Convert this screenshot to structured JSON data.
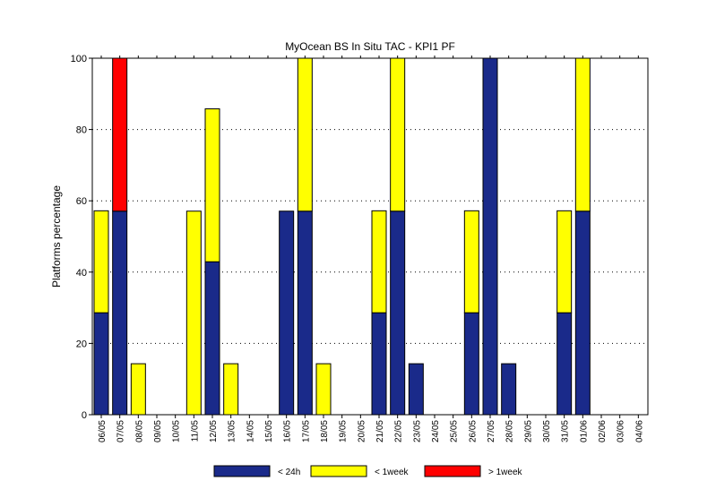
{
  "chart_data": {
    "type": "bar",
    "stacked": true,
    "title": "MyOcean  BS In Situ TAC - KPI1  PF",
    "xlabel": "",
    "ylabel": "Platforms percentage",
    "ylim": [
      0,
      100
    ],
    "yticks": [
      0,
      20,
      40,
      60,
      80,
      100
    ],
    "grid": "horizontal dotted",
    "legend_position": "bottom",
    "categories": [
      "06/05",
      "07/05",
      "08/05",
      "09/05",
      "10/05",
      "11/05",
      "12/05",
      "13/05",
      "14/05",
      "15/05",
      "16/05",
      "17/05",
      "18/05",
      "19/05",
      "20/05",
      "21/05",
      "22/05",
      "23/05",
      "24/05",
      "25/05",
      "26/05",
      "27/05",
      "28/05",
      "29/05",
      "30/05",
      "31/05",
      "01/06",
      "02/06",
      "03/06",
      "04/06"
    ],
    "series": [
      {
        "name": "< 24h",
        "color": "#1a2a8a",
        "values": [
          28.6,
          57.1,
          0,
          0,
          0,
          0,
          42.9,
          0,
          0,
          0,
          57.1,
          57.1,
          0,
          0,
          0,
          28.6,
          57.1,
          14.3,
          0,
          0,
          28.6,
          100,
          14.3,
          0,
          0,
          28.6,
          57.1,
          0,
          0,
          0
        ]
      },
      {
        "name": "< 1week",
        "color": "#ffff00",
        "values": [
          28.6,
          0,
          14.3,
          0,
          0,
          57.1,
          42.9,
          14.3,
          0,
          0,
          0,
          42.9,
          14.3,
          0,
          0,
          28.6,
          42.9,
          0,
          0,
          0,
          28.6,
          0,
          0,
          0,
          0,
          28.6,
          42.9,
          0,
          0,
          0
        ]
      },
      {
        "name": "> 1week",
        "color": "#ff0000",
        "values": [
          0,
          42.9,
          0,
          0,
          0,
          0,
          0,
          0,
          0,
          0,
          0,
          0,
          0,
          0,
          0,
          0,
          0,
          0,
          0,
          0,
          0,
          0,
          0,
          0,
          0,
          0,
          0,
          0,
          0,
          0
        ]
      }
    ]
  }
}
